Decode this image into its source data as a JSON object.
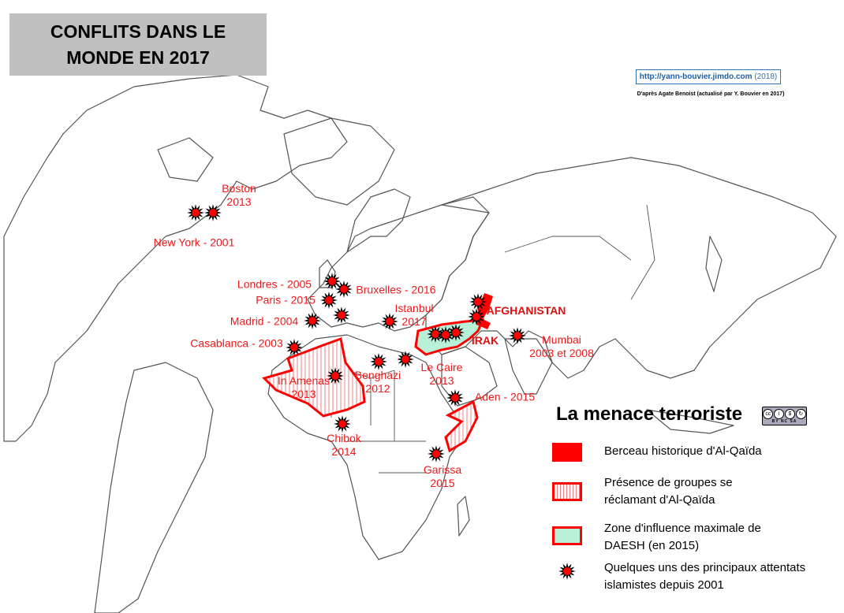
{
  "title": {
    "line1": "CONFLITS DANS LE",
    "line2": "MONDE EN 2017"
  },
  "source": {
    "url": "http://yann-bouvier.jimdo.com",
    "year": "(2018)",
    "credit": "D'après Agate Benoist (actualisé par Y. Bouvier en 2017)"
  },
  "countries": {
    "afghanistan": "AFGHANISTAN",
    "irak": "IRAK"
  },
  "attacks": [
    {
      "line1": "Boston",
      "line2": "2013"
    },
    {
      "line1": "New York - 2001",
      "line2": ""
    },
    {
      "line1": "Londres - 2005",
      "line2": ""
    },
    {
      "line1": "Bruxelles - 2016",
      "line2": ""
    },
    {
      "line1": "Paris - 2015",
      "line2": ""
    },
    {
      "line1": "Madrid - 2004",
      "line2": ""
    },
    {
      "line1": "Casablanca - 2003",
      "line2": ""
    },
    {
      "line1": "Istanbul",
      "line2": "2017"
    },
    {
      "line1": "In Amenas",
      "line2": "2013"
    },
    {
      "line1": "Benghazi",
      "line2": "2012"
    },
    {
      "line1": "Le Caire",
      "line2": "2013"
    },
    {
      "line1": "Chibok",
      "line2": "2014"
    },
    {
      "line1": "Aden - 2015",
      "line2": ""
    },
    {
      "line1": "Garissa",
      "line2": "2015"
    },
    {
      "line1": "Mumbai",
      "line2": "2003 et 2008"
    }
  ],
  "legend": {
    "title": "La menace terroriste",
    "license": "BY NC SA",
    "items": [
      {
        "text": "Berceau historique d'Al-Qaïda"
      },
      {
        "text": "Présence de groupes se réclamant d'Al-Qaïda"
      },
      {
        "text": "Zone d'influence maximale de DAESH (en 2015)"
      },
      {
        "text": "Quelques uns des principaux attentats islamistes depuis 2001"
      }
    ]
  },
  "colors": {
    "red": "#ff0000",
    "label_red": "#f01818",
    "daesh_fill": "#b8f0d8",
    "title_bg": "#c0c0c0",
    "border": "#555555"
  }
}
